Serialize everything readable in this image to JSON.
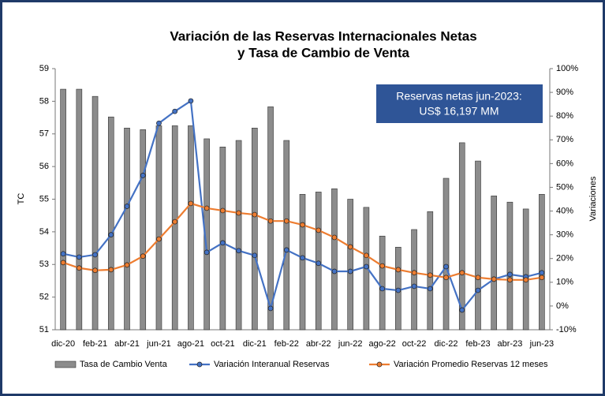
{
  "chart_data": {
    "type": "combo",
    "title": [
      "Variación de las Reservas Internacionales Netas",
      "y Tasa de Cambio de Venta"
    ],
    "y_label": "TC",
    "y2_label": "Variaciones",
    "annotation": [
      "Reservas netas jun-2023:",
      "US$ 16,197 MM"
    ],
    "categories": [
      "dic-20",
      null,
      "feb-21",
      null,
      "abr-21",
      null,
      "jun-21",
      null,
      "ago-21",
      null,
      "oct-21",
      null,
      "dic-21",
      null,
      "feb-22",
      null,
      "abr-22",
      null,
      "jun-22",
      null,
      "ago-22",
      null,
      "oct-22",
      null,
      "dic-22",
      null,
      "feb-23",
      null,
      "abr-23",
      null,
      "jun-23"
    ],
    "ylim": [
      51,
      59
    ],
    "yticks": [
      51,
      52,
      53,
      54,
      55,
      56,
      57,
      58,
      59
    ],
    "y2lim": [
      -10,
      100
    ],
    "y2ticks": [
      {
        "value": -10,
        "label": "-10%"
      },
      {
        "value": 0,
        "label": "0%"
      },
      {
        "value": 10,
        "label": "10%"
      },
      {
        "value": 20,
        "label": "20%"
      },
      {
        "value": 30,
        "label": "30%"
      },
      {
        "value": 40,
        "label": "40%"
      },
      {
        "value": 50,
        "label": "50%"
      },
      {
        "value": 60,
        "label": "60%"
      },
      {
        "value": 70,
        "label": "70%"
      },
      {
        "value": 80,
        "label": "80%"
      },
      {
        "value": 90,
        "label": "90%"
      },
      {
        "value": 100,
        "label": "100%"
      }
    ],
    "series": [
      {
        "name": "Tasa de Cambio Venta",
        "type": "bar",
        "color": "#8c8c8c",
        "values": [
          58.37,
          58.37,
          58.15,
          57.52,
          57.18,
          57.13,
          57.25,
          57.25,
          57.25,
          56.85,
          56.6,
          56.8,
          57.18,
          57.83,
          56.8,
          55.15,
          55.22,
          55.32,
          55.0,
          54.75,
          53.87,
          53.53,
          54.07,
          54.62,
          55.64,
          56.73,
          56.17,
          55.1,
          54.91,
          54.7,
          55.15
        ]
      },
      {
        "name": "Variación Interanual Reservas",
        "type": "line",
        "axis": "y2",
        "color": "#4472c4",
        "values": [
          22,
          20.6,
          21.6,
          30,
          42,
          55,
          77,
          82,
          86.4,
          22.6,
          26.6,
          23.3,
          21.3,
          -1,
          23.6,
          20.3,
          18,
          14.6,
          14.6,
          16.6,
          7.3,
          6.6,
          8.3,
          7.3,
          16.6,
          -1.7,
          6.6,
          11.3,
          13.3,
          12.3,
          14
        ]
      },
      {
        "name": "Variación Promedio Reservas 12 meses",
        "type": "line",
        "axis": "y2",
        "color": "#ed7d31",
        "values": [
          18.3,
          16,
          15,
          15.3,
          17.3,
          21,
          28.2,
          35.5,
          43.2,
          41.2,
          40.2,
          39.2,
          38.5,
          35.8,
          35.8,
          34.2,
          31.9,
          28.9,
          24.9,
          21.3,
          16.9,
          15.3,
          14,
          13,
          12,
          14,
          12,
          11.3,
          11,
          11,
          12
        ]
      }
    ]
  }
}
